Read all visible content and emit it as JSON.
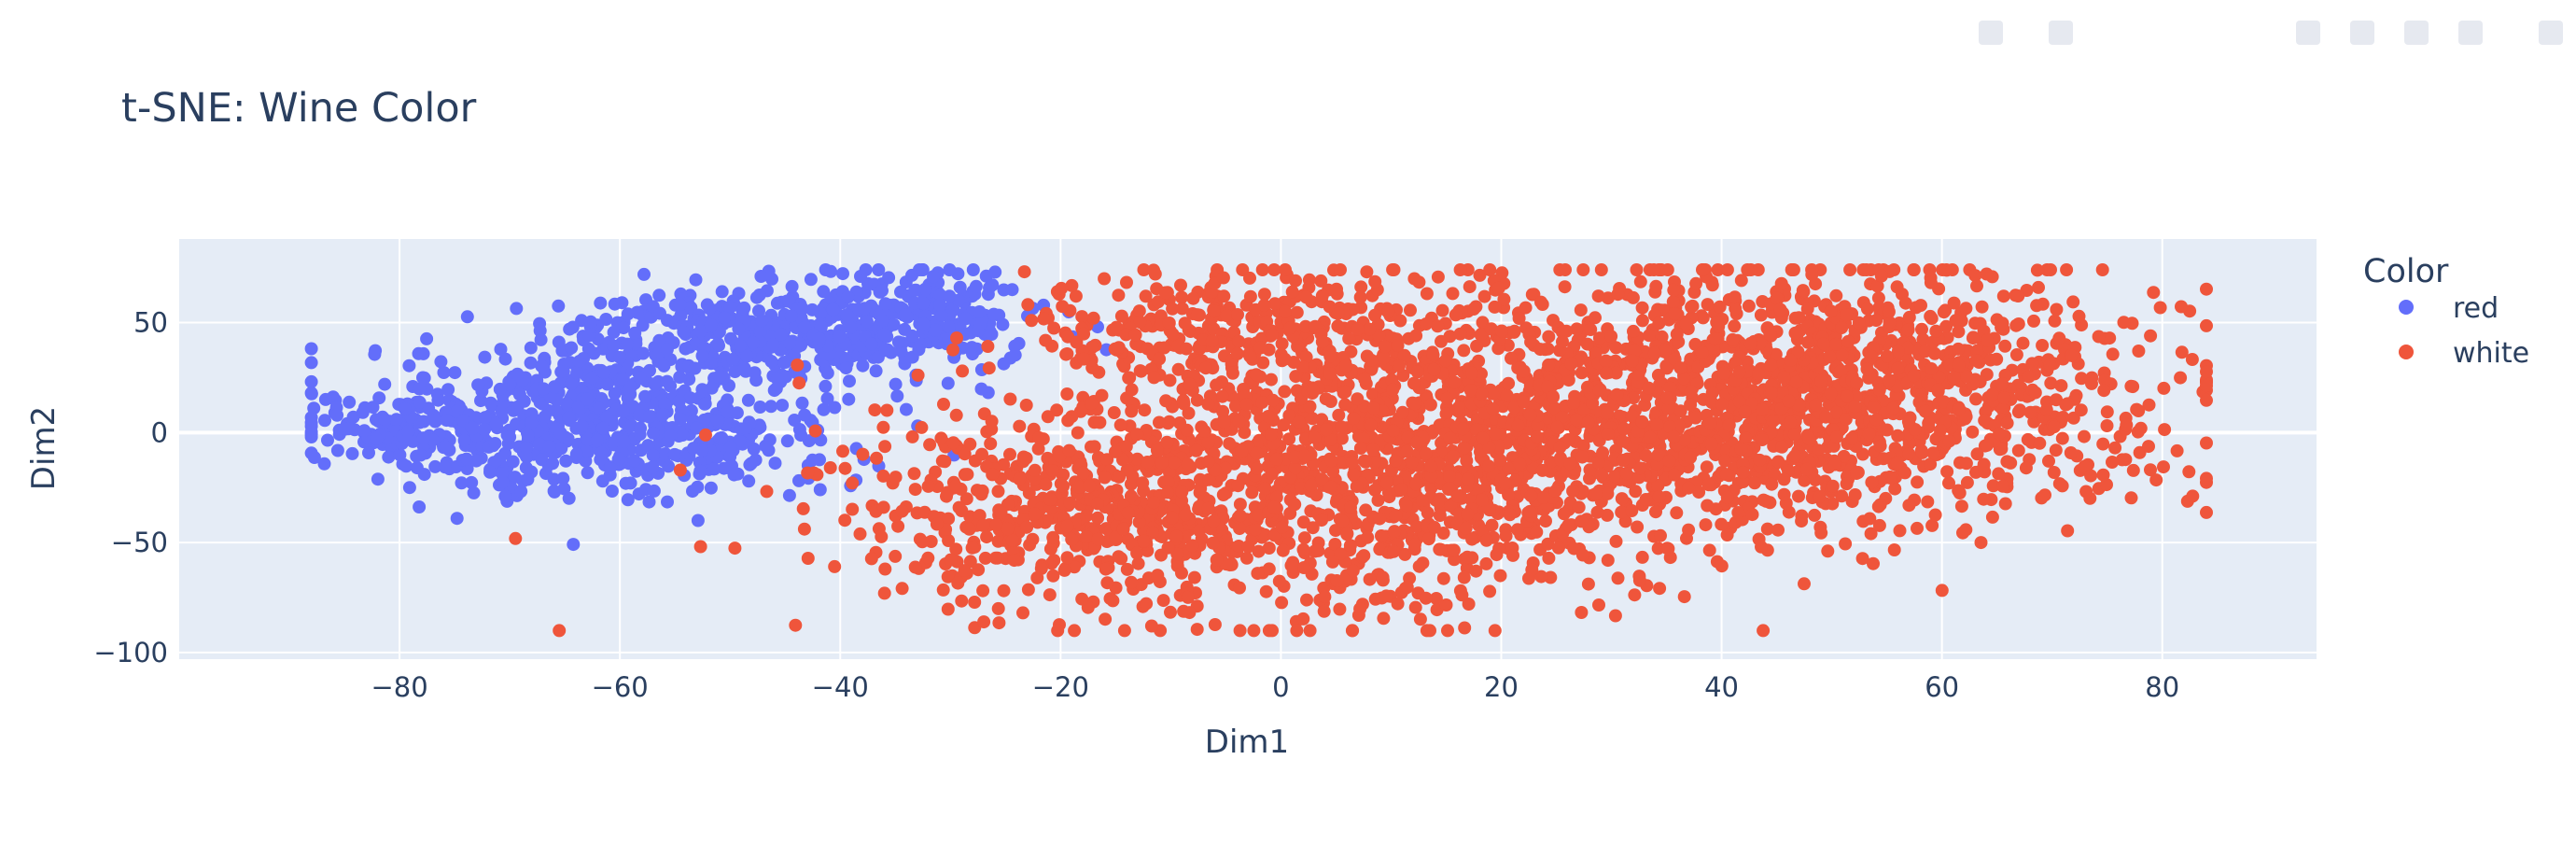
{
  "chart_data": {
    "type": "scatter",
    "title": "t-SNE: Wine Color",
    "xlabel": "Dim1",
    "ylabel": "Dim2",
    "xlim": [
      -100,
      94
    ],
    "ylim": [
      -103,
      88
    ],
    "x_ticks": [
      -80,
      -60,
      -40,
      -20,
      0,
      20,
      40,
      60,
      80
    ],
    "y_ticks": [
      -100,
      -50,
      0,
      50
    ],
    "x_tick_labels": [
      "−80",
      "−60",
      "−40",
      "−20",
      "0",
      "20",
      "40",
      "60",
      "80"
    ],
    "y_tick_labels": [
      "−100",
      "−50",
      "0",
      "50"
    ],
    "grid": true,
    "legend_title": "Color",
    "legend_position": "right",
    "series": [
      {
        "name": "red",
        "color": "#636efa",
        "clusters": [
          {
            "cx": -62,
            "cy": 5,
            "sx": 11,
            "sy": 17,
            "n": 700
          },
          {
            "cx": -45,
            "cy": 45,
            "sx": 10,
            "sy": 11,
            "n": 450
          },
          {
            "cx": -32,
            "cy": 58,
            "sx": 4,
            "sy": 9,
            "n": 120
          },
          {
            "cx": -80,
            "cy": 0,
            "sx": 4,
            "sy": 7,
            "n": 80
          }
        ]
      },
      {
        "name": "white",
        "color": "#ef553b",
        "clusters": [
          {
            "cx": 5,
            "cy": -20,
            "sx": 18,
            "sy": 32,
            "n": 1300
          },
          {
            "cx": 30,
            "cy": 15,
            "sx": 15,
            "sy": 28,
            "n": 1000
          },
          {
            "cx": 55,
            "cy": 20,
            "sx": 13,
            "sy": 27,
            "n": 900
          },
          {
            "cx": -18,
            "cy": -40,
            "sx": 10,
            "sy": 20,
            "n": 350
          },
          {
            "cx": -5,
            "cy": 50,
            "sx": 9,
            "sy": 13,
            "n": 250
          }
        ]
      }
    ]
  }
}
